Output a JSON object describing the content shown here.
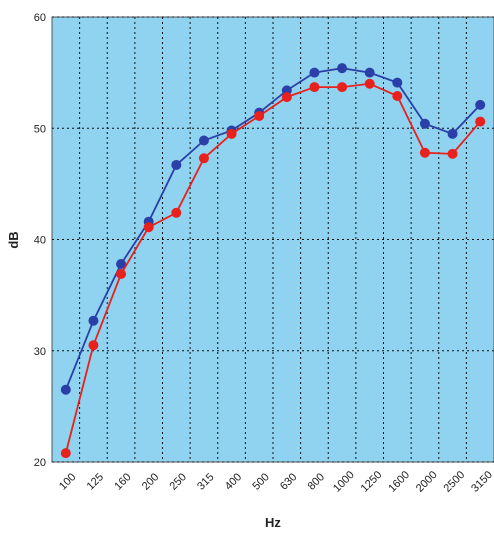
{
  "chart_data": {
    "type": "line",
    "x_label": "Hz",
    "y_label": "dB",
    "categories": [
      "100",
      "125",
      "160",
      "200",
      "250",
      "315",
      "400",
      "500",
      "630",
      "800",
      "1000",
      "1250",
      "1600",
      "2000",
      "2500",
      "3150"
    ],
    "series": [
      {
        "color": "#2b3fa8",
        "values": [
          26.5,
          32.7,
          37.8,
          41.6,
          46.7,
          48.9,
          49.8,
          51.4,
          53.4,
          55.0,
          55.4,
          55.0,
          54.1,
          50.4,
          49.5,
          52.1
        ]
      },
      {
        "color": "#e8211d",
        "values": [
          20.8,
          30.5,
          36.9,
          41.1,
          42.4,
          47.3,
          49.5,
          51.1,
          52.8,
          53.7,
          53.7,
          54.0,
          52.9,
          47.8,
          47.7,
          50.6
        ]
      }
    ],
    "ylim": [
      20,
      60
    ],
    "yticks": [
      20,
      30,
      40,
      50,
      60
    ],
    "grid": true,
    "plot_background": "#8fd3f0"
  }
}
